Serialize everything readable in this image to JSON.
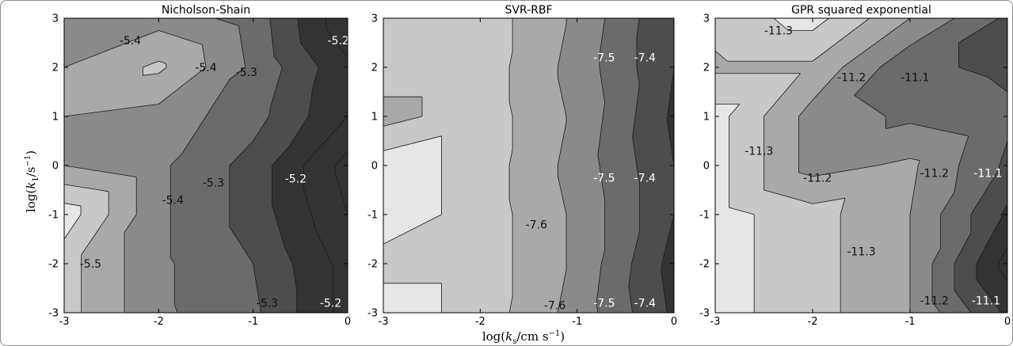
{
  "figure": {
    "xlabel": "log(k_s/cm s^{-1})",
    "ylabel": "log(k_1/s^{-1})",
    "palette": [
      "#ffffff",
      "#e6e6e6",
      "#c8c8c8",
      "#a9a9a9",
      "#8a8a8a",
      "#6b6b6b",
      "#4d4d4d",
      "#333333"
    ]
  },
  "chart_data": [
    {
      "type": "contour",
      "title": "Nicholson-Shain",
      "xlim": [
        -3,
        0
      ],
      "ylim": [
        -3,
        3
      ],
      "xticks": [
        -3,
        -2,
        -1,
        0
      ],
      "yticks": [
        -3,
        -2,
        -1,
        0,
        1,
        2,
        3
      ],
      "x": [
        -3,
        -2,
        -1,
        0
      ],
      "y": [
        -3,
        -2,
        -1,
        0,
        1,
        2,
        3
      ],
      "z": [
        [
          -5.47,
          -5.36,
          -5.31,
          -5.18
        ],
        [
          -5.47,
          -5.36,
          -5.3,
          -5.18
        ],
        [
          -5.53,
          -5.36,
          -5.28,
          -5.15
        ],
        [
          -5.4,
          -5.36,
          -5.28,
          -5.13
        ],
        [
          -5.4,
          -5.38,
          -5.32,
          -5.2
        ],
        [
          -5.4,
          -5.46,
          -5.34,
          -5.21
        ],
        [
          -5.38,
          -5.38,
          -5.33,
          -5.16
        ]
      ],
      "levels": [
        -5.55,
        -5.5,
        -5.45,
        -5.4,
        -5.35,
        -5.3,
        -5.25,
        -5.2,
        -5.15,
        -5.1
      ],
      "contour_labels": [
        {
          "text": "-5.4",
          "x": -2.3,
          "y": 2.55
        },
        {
          "text": "-5.4",
          "x": -1.5,
          "y": 2.0
        },
        {
          "text": "-5.3",
          "x": -1.07,
          "y": 1.9
        },
        {
          "text": "-5.2",
          "x": -0.1,
          "y": 2.55
        },
        {
          "text": "-5.3",
          "x": -1.42,
          "y": -0.35
        },
        {
          "text": "-5.2",
          "x": -0.55,
          "y": -0.27
        },
        {
          "text": "-5.4",
          "x": -1.85,
          "y": -0.7
        },
        {
          "text": "-5.5",
          "x": -2.72,
          "y": -2.0
        },
        {
          "text": "-5.3",
          "x": -0.85,
          "y": -2.8
        },
        {
          "text": "-5.2",
          "x": -0.18,
          "y": -2.8
        }
      ]
    },
    {
      "type": "contour",
      "title": "SVR-RBF",
      "xlim": [
        -3,
        0
      ],
      "ylim": [
        -3,
        3
      ],
      "xticks": [
        -3,
        -2,
        -1,
        0
      ],
      "yticks": [
        -3,
        -2,
        -1,
        0,
        1,
        2,
        3
      ],
      "x": [
        -3,
        -2,
        -1,
        0
      ],
      "y": [
        -3,
        -2,
        -1,
        0,
        1,
        2,
        3
      ],
      "z": [
        [
          -7.63,
          -7.58,
          -7.48,
          -7.34
        ],
        [
          -7.58,
          -7.58,
          -7.49,
          -7.33
        ],
        [
          -7.63,
          -7.58,
          -7.49,
          -7.35
        ],
        [
          -7.63,
          -7.58,
          -7.48,
          -7.35
        ],
        [
          -7.53,
          -7.58,
          -7.49,
          -7.34
        ],
        [
          -7.58,
          -7.58,
          -7.48,
          -7.35
        ],
        [
          -7.58,
          -7.58,
          -7.49,
          -7.35
        ]
      ],
      "levels": [
        -7.65,
        -7.6,
        -7.55,
        -7.5,
        -7.45,
        -7.4,
        -7.35,
        -7.3
      ],
      "contour_labels": [
        {
          "text": "-7.5",
          "x": -0.72,
          "y": 2.2
        },
        {
          "text": "-7.4",
          "x": -0.3,
          "y": 2.2
        },
        {
          "text": "-7.5",
          "x": -0.72,
          "y": -0.25
        },
        {
          "text": "-7.4",
          "x": -0.3,
          "y": -0.25
        },
        {
          "text": "-7.6",
          "x": -1.42,
          "y": -1.2
        },
        {
          "text": "-7.6",
          "x": -1.23,
          "y": -2.85
        },
        {
          "text": "-7.5",
          "x": -0.72,
          "y": -2.8
        },
        {
          "text": "-7.4",
          "x": -0.3,
          "y": -2.8
        }
      ]
    },
    {
      "type": "contour",
      "title": "GPR squared exponential",
      "xlim": [
        -3,
        0
      ],
      "ylim": [
        -3,
        3
      ],
      "xticks": [
        -3,
        -2,
        -1,
        0
      ],
      "yticks": [
        -3,
        -2,
        -1,
        0,
        1,
        2,
        3
      ],
      "x": [
        -3,
        -2,
        -1,
        0
      ],
      "y": [
        -3,
        -2,
        -1,
        0,
        1,
        2,
        3
      ],
      "z": [
        [
          -11.32,
          -11.27,
          -11.2,
          -11.04
        ],
        [
          -11.32,
          -11.27,
          -11.2,
          -10.98
        ],
        [
          -11.32,
          -11.27,
          -11.2,
          -11.04
        ],
        [
          -11.32,
          -11.18,
          -11.21,
          -11.09
        ],
        [
          -11.32,
          -11.18,
          -11.14,
          -11.11
        ],
        [
          -11.24,
          -11.24,
          -11.11,
          -11.09
        ],
        [
          -11.27,
          -11.32,
          -11.2,
          -11.09
        ]
      ],
      "levels": [
        -11.35,
        -11.3,
        -11.25,
        -11.2,
        -11.15,
        -11.1,
        -11.05,
        -11.0,
        -10.95
      ],
      "contour_labels": [
        {
          "text": "-11.3",
          "x": -2.35,
          "y": 2.75
        },
        {
          "text": "-11.2",
          "x": -1.6,
          "y": 1.8
        },
        {
          "text": "-11.1",
          "x": -0.95,
          "y": 1.8
        },
        {
          "text": "-11.3",
          "x": -2.55,
          "y": 0.3
        },
        {
          "text": "-11.2",
          "x": -1.95,
          "y": -0.25
        },
        {
          "text": "-11.2",
          "x": -0.75,
          "y": -0.15
        },
        {
          "text": "-11.1",
          "x": -0.2,
          "y": -0.15
        },
        {
          "text": "-11.3",
          "x": -1.5,
          "y": -1.75
        },
        {
          "text": "-11.2",
          "x": -0.75,
          "y": -2.75
        },
        {
          "text": "-11.1",
          "x": -0.22,
          "y": -2.75
        }
      ]
    }
  ]
}
